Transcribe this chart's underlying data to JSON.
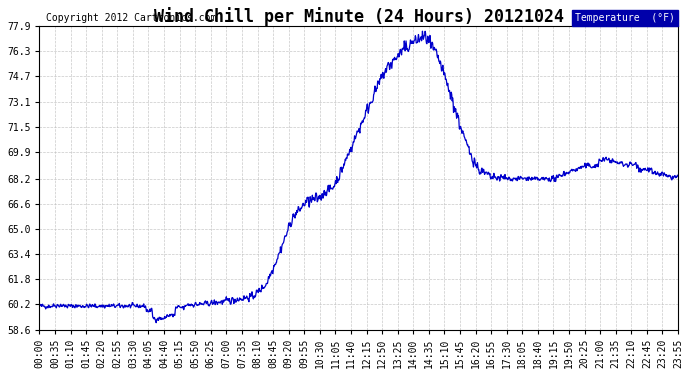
{
  "title": "Wind Chill per Minute (24 Hours) 20121024",
  "copyright": "Copyright 2012 Cartronics.com",
  "legend_label": "Temperature  (°F)",
  "line_color": "#0000CC",
  "background_color": "#ffffff",
  "plot_bg_color": "#ffffff",
  "grid_color": "#bbbbbb",
  "yticks": [
    58.6,
    60.2,
    61.8,
    63.4,
    65.0,
    66.6,
    68.2,
    69.9,
    71.5,
    73.1,
    74.7,
    76.3,
    77.9
  ],
  "ylim": [
    58.6,
    77.9
  ],
  "x_labels": [
    "00:00",
    "00:35",
    "01:10",
    "01:45",
    "02:20",
    "02:55",
    "03:30",
    "04:05",
    "04:40",
    "05:15",
    "05:50",
    "06:25",
    "07:00",
    "07:35",
    "08:10",
    "08:45",
    "09:20",
    "09:55",
    "10:30",
    "11:05",
    "11:40",
    "12:15",
    "12:50",
    "13:25",
    "14:00",
    "14:35",
    "15:10",
    "15:45",
    "16:20",
    "16:55",
    "17:30",
    "18:05",
    "18:40",
    "19:15",
    "19:50",
    "20:25",
    "21:00",
    "21:35",
    "22:10",
    "22:45",
    "23:20",
    "23:55"
  ],
  "legend_bg": "#0000AA",
  "legend_text_color": "#ffffff",
  "title_fontsize": 12,
  "copyright_fontsize": 7,
  "tick_fontsize": 7,
  "legend_fontsize": 7
}
